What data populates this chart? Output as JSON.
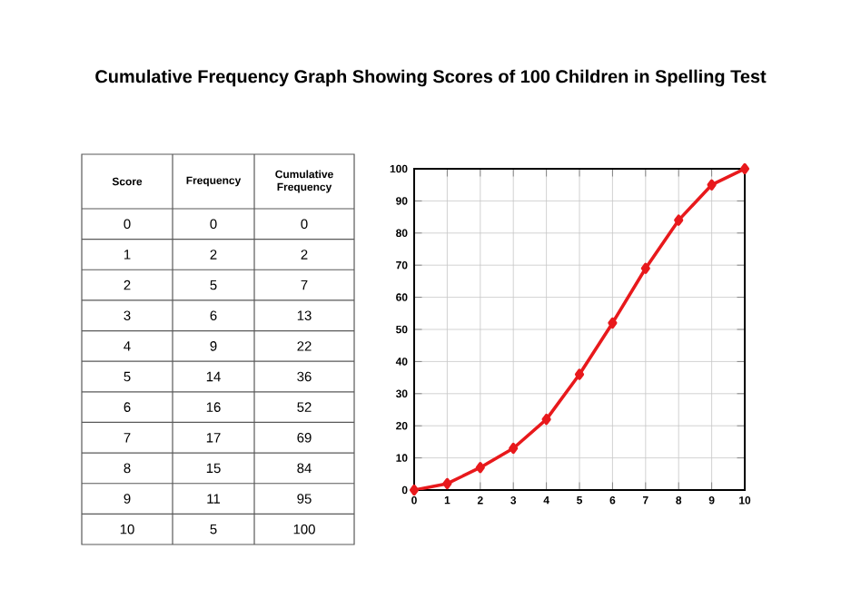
{
  "chart_data": [
    {
      "type": "heatmap",
      "ylabel": "Score",
      "categories": [
        "Frequency",
        "Cumulative Frequency"
      ],
      "y_categories": [
        "0",
        "1",
        "2",
        "3",
        "4",
        "5",
        "6",
        "7",
        "8",
        "9",
        "10"
      ],
      "cells": [
        [
          0,
          0
        ],
        [
          2,
          2
        ],
        [
          5,
          7
        ],
        [
          6,
          13
        ],
        [
          9,
          22
        ],
        [
          14,
          36
        ],
        [
          16,
          52
        ],
        [
          17,
          69
        ],
        [
          15,
          84
        ],
        [
          11,
          95
        ],
        [
          5,
          100
        ]
      ],
      "data_labels": true
    },
    {
      "type": "line",
      "title": "Cumulative Frequency Graph Showing Scores of 100 Children in Spelling Test",
      "x": [
        0,
        1,
        2,
        3,
        4,
        5,
        6,
        7,
        8,
        9,
        10
      ],
      "values": [
        0,
        2,
        7,
        13,
        22,
        36,
        52,
        69,
        84,
        95,
        100
      ],
      "color": "#e8191c",
      "xlim": [
        0,
        10
      ],
      "xticks": [
        0,
        1,
        2,
        3,
        4,
        5,
        6,
        7,
        8,
        9,
        10
      ],
      "ylim": [
        0,
        100
      ],
      "yticks": [
        0,
        10,
        20,
        30,
        40,
        50,
        60,
        70,
        80,
        90,
        100
      ],
      "grid": true,
      "marker": "diamond",
      "line_style": "solid"
    }
  ]
}
